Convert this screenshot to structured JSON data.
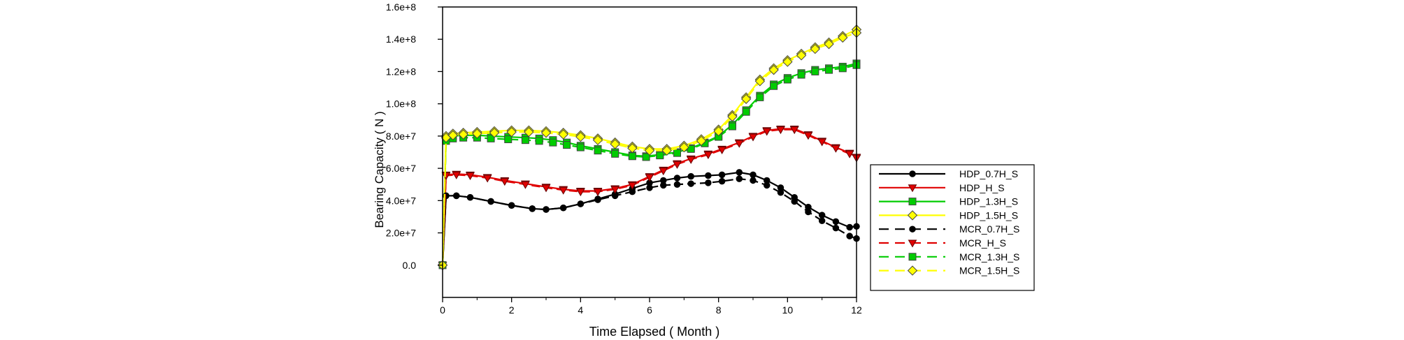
{
  "chart_data": {
    "type": "line",
    "title": "",
    "xlabel": "Time Elapsed ( Month )",
    "ylabel": "Bearing Capacity ( N )",
    "xlim": [
      0,
      12
    ],
    "ylim": [
      -20000000.0,
      160000000.0
    ],
    "x_ticks": [
      0,
      2,
      4,
      6,
      8,
      10,
      12
    ],
    "x_tick_labels": [
      "0",
      "2",
      "4",
      "6",
      "8",
      "10",
      "12"
    ],
    "y_ticks": [
      0,
      20000000.0,
      40000000.0,
      60000000.0,
      80000000.0,
      100000000.0,
      120000000.0,
      140000000.0,
      160000000.0
    ],
    "y_tick_labels": [
      "0.0",
      "2.0e+7",
      "4.0e+7",
      "6.0e+7",
      "8.0e+7",
      "1.0e+8",
      "1.2e+8",
      "1.4e+8",
      "1.6e+8"
    ],
    "grid": false,
    "legend_position": "right",
    "series": [
      {
        "name": "HDP_0.7H_S",
        "color": "#000000",
        "marker": "circle",
        "dash": "solid",
        "marker_fill": "#000000",
        "x": [
          0,
          0.1,
          0.4,
          0.8,
          1.4,
          2,
          2.6,
          3,
          3.5,
          4,
          4.5,
          5,
          5.5,
          6,
          6.4,
          6.8,
          7.2,
          7.7,
          8.1,
          8.6,
          9.0,
          9.4,
          9.8,
          10.2,
          10.6,
          11.0,
          11.4,
          11.8,
          12
        ],
        "y": [
          0,
          43000000.0,
          43000000.0,
          42000000.0,
          39500000.0,
          37000000.0,
          35000000.0,
          34500000.0,
          35500000.0,
          38000000.0,
          41000000.0,
          44000000.0,
          47500000.0,
          51000000.0,
          52500000.0,
          54000000.0,
          55000000.0,
          55500000.0,
          56000000.0,
          57500000.0,
          56000000.0,
          52500000.0,
          48000000.0,
          42000000.0,
          36000000.0,
          31000000.0,
          27000000.0,
          23500000.0,
          24000000.0
        ]
      },
      {
        "name": "HDP_H_S",
        "color": "#e00000",
        "marker": "triangle-down",
        "dash": "solid",
        "marker_fill": "#e00000",
        "x": [
          0,
          0.1,
          0.4,
          0.8,
          1.3,
          1.8,
          2.4,
          3,
          3.5,
          4,
          4.5,
          5,
          5.5,
          6,
          6.4,
          6.8,
          7.2,
          7.7,
          8.1,
          8.6,
          9.0,
          9.4,
          9.8,
          10.2,
          10.6,
          11.0,
          11.4,
          11.8,
          12
        ],
        "y": [
          0,
          56000000.0,
          56500000.0,
          56000000.0,
          54500000.0,
          52500000.0,
          50500000.0,
          48500000.0,
          47000000.0,
          46000000.0,
          46000000.0,
          47500000.0,
          50000000.0,
          55000000.0,
          59000000.0,
          63000000.0,
          66000000.0,
          69000000.0,
          72000000.0,
          76000000.0,
          80000000.0,
          83500000.0,
          84500000.0,
          84500000.0,
          81000000.0,
          77000000.0,
          73000000.0,
          69500000.0,
          67000000.0
        ]
      },
      {
        "name": "HDP_1.3H_S",
        "color": "#00cc00",
        "marker": "square",
        "dash": "solid",
        "marker_fill": "#00cc00",
        "x": [
          0,
          0.1,
          0.3,
          0.6,
          1.0,
          1.4,
          1.9,
          2.4,
          2.8,
          3.2,
          3.6,
          4.0,
          4.5,
          5.0,
          5.5,
          5.9,
          6.3,
          6.8,
          7.2,
          7.6,
          8.0,
          8.4,
          8.8,
          9.2,
          9.6,
          10.0,
          10.4,
          10.8,
          11.2,
          11.6,
          12
        ],
        "y": [
          0,
          78000000.0,
          80000000.0,
          80500000.0,
          80500000.0,
          80000000.0,
          79500000.0,
          79000000.0,
          78500000.0,
          77500000.0,
          76000000.0,
          74000000.0,
          72000000.0,
          70000000.0,
          68000000.0,
          67500000.0,
          68500000.0,
          70000000.0,
          72500000.0,
          76000000.0,
          80000000.0,
          87000000.0,
          96000000.0,
          105000000.0,
          112000000.0,
          116000000.0,
          119000000.0,
          121000000.0,
          122000000.0,
          123000000.0,
          125000000.0
        ]
      },
      {
        "name": "HDP_1.5H_S",
        "color": "#ffff00",
        "marker": "diamond",
        "dash": "solid",
        "marker_fill": "#ffff00",
        "x": [
          0,
          0.1,
          0.3,
          0.6,
          1.0,
          1.5,
          2.0,
          2.5,
          3.0,
          3.5,
          4.0,
          4.5,
          5.0,
          5.5,
          6.0,
          6.5,
          7.0,
          7.5,
          8.0,
          8.4,
          8.8,
          9.2,
          9.6,
          10.0,
          10.4,
          10.8,
          11.2,
          11.6,
          12
        ],
        "y": [
          0,
          80000000.0,
          81500000.0,
          82000000.0,
          82500000.0,
          83000000.0,
          83500000.0,
          83500000.0,
          83000000.0,
          82000000.0,
          80500000.0,
          78500000.0,
          76000000.0,
          73500000.0,
          72000000.0,
          72000000.0,
          74000000.0,
          78000000.0,
          84000000.0,
          93000000.0,
          104000000.0,
          115000000.0,
          122000000.0,
          127000000.0,
          131000000.0,
          135000000.0,
          138000000.0,
          142000000.0,
          146000000.0
        ]
      },
      {
        "name": "MCR_0.7H_S",
        "color": "#000000",
        "marker": "circle",
        "dash": "dashed",
        "marker_fill": "#000000",
        "x": [
          0,
          0.1,
          0.4,
          0.8,
          1.4,
          2,
          2.6,
          3,
          3.5,
          4,
          4.5,
          5,
          5.5,
          6,
          6.4,
          6.8,
          7.2,
          7.7,
          8.1,
          8.6,
          9.0,
          9.4,
          9.8,
          10.2,
          10.6,
          11.0,
          11.4,
          11.8,
          12
        ],
        "y": [
          0,
          43000000.0,
          43000000.0,
          42000000.0,
          39500000.0,
          37000000.0,
          35000000.0,
          34500000.0,
          35500000.0,
          38000000.0,
          40500000.0,
          43000000.0,
          45500000.0,
          48000000.0,
          49500000.0,
          50000000.0,
          50500000.0,
          51000000.0,
          52000000.0,
          53500000.0,
          52500000.0,
          49500000.0,
          45000000.0,
          39500000.0,
          33000000.0,
          27500000.0,
          23000000.0,
          18000000.0,
          16500000.0
        ]
      },
      {
        "name": "MCR_H_S",
        "color": "#e00000",
        "marker": "triangle-down",
        "dash": "dashed",
        "marker_fill": "#e00000",
        "x": [
          0,
          0.1,
          0.4,
          0.8,
          1.3,
          1.8,
          2.4,
          3,
          3.5,
          4,
          4.5,
          5,
          5.5,
          6,
          6.4,
          6.8,
          7.2,
          7.7,
          8.1,
          8.6,
          9.0,
          9.4,
          9.8,
          10.2,
          10.6,
          11.0,
          11.4,
          11.8,
          12
        ],
        "y": [
          0,
          55500000.0,
          56000000.0,
          55500000.0,
          54000000.0,
          52000000.0,
          50000000.0,
          48000000.0,
          46500000.0,
          45500000.0,
          45500000.0,
          47000000.0,
          49500000.0,
          54500000.0,
          58500000.0,
          62500000.0,
          65500000.0,
          68500000.0,
          71500000.0,
          75500000.0,
          79500000.0,
          83000000.0,
          84000000.0,
          84000000.0,
          80500000.0,
          76500000.0,
          72500000.0,
          69000000.0,
          66500000.0
        ]
      },
      {
        "name": "MCR_1.3H_S",
        "color": "#00cc00",
        "marker": "square",
        "dash": "dashed",
        "marker_fill": "#00cc00",
        "x": [
          0,
          0.1,
          0.3,
          0.6,
          1.0,
          1.4,
          1.9,
          2.4,
          2.8,
          3.2,
          3.6,
          4.0,
          4.5,
          5.0,
          5.5,
          5.9,
          6.3,
          6.8,
          7.2,
          7.6,
          8.0,
          8.4,
          8.8,
          9.2,
          9.6,
          10.0,
          10.4,
          10.8,
          11.2,
          11.6,
          12
        ],
        "y": [
          0,
          77000000.0,
          78500000.0,
          79000000.0,
          79000000.0,
          78500000.0,
          78000000.0,
          77500000.0,
          77000000.0,
          76000000.0,
          74500000.0,
          73000000.0,
          71000000.0,
          69000000.0,
          67500000.0,
          67000000.0,
          68000000.0,
          69500000.0,
          72000000.0,
          75500000.0,
          79500000.0,
          86000000.0,
          95000000.0,
          104000000.0,
          111000000.0,
          115000000.0,
          118000000.0,
          120000000.0,
          121000000.0,
          122000000.0,
          124000000.0
        ]
      },
      {
        "name": "MCR_1.5H_S",
        "color": "#ffff00",
        "marker": "diamond",
        "dash": "dashed",
        "marker_fill": "#ffff00",
        "x": [
          0,
          0.1,
          0.3,
          0.6,
          1.0,
          1.5,
          2.0,
          2.5,
          3.0,
          3.5,
          4.0,
          4.5,
          5.0,
          5.5,
          6.0,
          6.5,
          7.0,
          7.5,
          8.0,
          8.4,
          8.8,
          9.2,
          9.6,
          10.0,
          10.4,
          10.8,
          11.2,
          11.6,
          12
        ],
        "y": [
          0,
          79000000.0,
          80500000.0,
          81000000.0,
          81500000.0,
          82000000.0,
          82500000.0,
          82500000.0,
          82000000.0,
          81000000.0,
          79500000.0,
          77500000.0,
          75000000.0,
          72500000.0,
          71000000.0,
          71000000.0,
          73000000.0,
          77000000.0,
          83000000.0,
          92000000.0,
          103000000.0,
          114000000.0,
          121000000.0,
          126000000.0,
          130000000.0,
          134000000.0,
          137000000.0,
          141000000.0,
          144000000.0
        ]
      }
    ]
  }
}
